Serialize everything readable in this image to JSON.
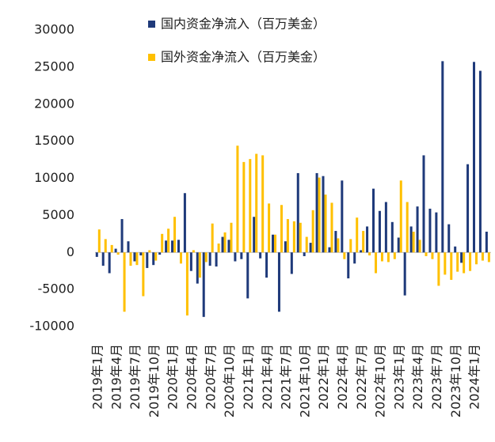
{
  "chart_data": {
    "type": "bar",
    "categories": [
      "2019年1月",
      null,
      null,
      "2019年4月",
      null,
      null,
      "2019年7月",
      null,
      null,
      "2019年10月",
      null,
      null,
      "2020年1月",
      null,
      null,
      "2020年4月",
      null,
      null,
      "2020年7月",
      null,
      null,
      "2020年10月",
      null,
      null,
      "2021年1月",
      null,
      null,
      "2021年4月",
      null,
      null,
      "2021年7月",
      null,
      null,
      "2021年10月",
      null,
      null,
      "2022年1月",
      null,
      null,
      "2022年4月",
      null,
      null,
      "2022年7月",
      null,
      null,
      "2022年10月",
      null,
      null,
      "2023年1月",
      null,
      null,
      "2023年4月",
      null,
      null,
      "2023年7月",
      null,
      null,
      "2023年10月",
      null,
      null,
      "2024年1月",
      null,
      null
    ],
    "series": [
      {
        "name": "国内资金净流入（百万美金）",
        "color": "#1f3a7a",
        "values": [
          -600,
          -1800,
          -2800,
          500,
          4500,
          1500,
          -1200,
          -400,
          -2100,
          -1700,
          -300,
          1600,
          1600,
          1700,
          8000,
          -2500,
          -4200,
          -8700,
          -1800,
          -1900,
          2100,
          1700,
          -1200,
          -900,
          -6200,
          4800,
          -800,
          -3400,
          2400,
          -8000,
          1500,
          -2900,
          10700,
          -500,
          1300,
          10700,
          10300,
          700,
          2900,
          9700,
          -3500,
          -1500,
          300,
          3500,
          8600,
          5600,
          6800,
          4100,
          2000,
          -5800,
          3500,
          6200,
          13100,
          5900,
          5400,
          25800,
          3800,
          800,
          -1400,
          11900,
          25700,
          24500,
          2800
        ]
      },
      {
        "name": "国外资金净流入（百万美金）",
        "color": "#ffc000",
        "values": [
          3100,
          1800,
          1000,
          -300,
          -8000,
          -1800,
          -1700,
          -5900,
          300,
          -1100,
          2500,
          3200,
          4800,
          -1500,
          -8500,
          300,
          -3400,
          -1300,
          3900,
          1200,
          2700,
          4000,
          14400,
          12200,
          12600,
          13300,
          13100,
          6600,
          2400,
          6400,
          4500,
          4200,
          4000,
          2100,
          5700,
          10100,
          7800,
          6700,
          1900,
          -900,
          1800,
          4700,
          2900,
          -400,
          -2800,
          -1200,
          -1300,
          -900,
          9700,
          6800,
          2800,
          1700,
          -500,
          -900,
          -4500,
          -3000,
          -3700,
          -2600,
          -2800,
          -2500,
          -1600,
          -1100,
          -1300
        ]
      }
    ],
    "ylim": [
      -10000,
      30000
    ],
    "yticks": [
      -10000,
      -5000,
      0,
      5000,
      10000,
      15000,
      20000,
      25000,
      30000
    ]
  }
}
